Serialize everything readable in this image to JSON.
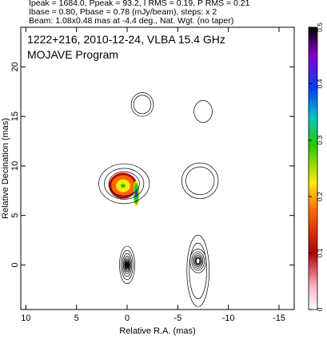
{
  "header": {
    "line1": "Ipeak = 1684.0, Ppeak = 93.2, I RMS = 0.19, P RMS = 0.21",
    "line2": "Ibase = 0.80, Pbase = 0.78 (mJy/beam), steps: x 2",
    "line3": "Beam: 1.08x0.48 mas at -4.4 deg., Nat. Wgt. (no taper)"
  },
  "chart_data": {
    "type": "heatmap",
    "title": "1222+216, 2010-12-24, VLBA 15.4 GHz",
    "subtitle": "MOJAVE Program",
    "xlabel": "Relative R.A. (mas)",
    "ylabel": "Relative Decination (mas)",
    "xlim": [
      10.5,
      -16.5
    ],
    "ylim": [
      -4.5,
      24
    ],
    "x_ticks": [
      10,
      5,
      0,
      -5,
      -10,
      -15
    ],
    "x_tick_labels": [
      "10",
      "5",
      "0",
      "-5",
      "-10",
      "-15"
    ],
    "y_ticks": [
      0,
      5,
      10,
      15,
      20
    ],
    "y_tick_labels": [
      "0",
      "5",
      "10",
      "15",
      "20"
    ],
    "colorbar": {
      "range": [
        0,
        0.5
      ],
      "ticks": [
        0,
        0.1,
        0.2,
        0.3,
        0.4,
        0.5
      ],
      "tick_labels": [
        "0",
        "0.1",
        "0.2",
        "0.3",
        "0.4",
        "0.5"
      ],
      "colors": [
        "#ffffff",
        "#ffb3c6",
        "#b30000",
        "#ff6600",
        "#ffee00",
        "#22cc00",
        "#00c8c8",
        "#0040ff",
        "#8800cc",
        "#000000"
      ]
    },
    "series": [
      {
        "kind": "contours",
        "x": 0,
        "y": 0,
        "rx": 0.75,
        "ry": 1.9,
        "levels": 14
      },
      {
        "kind": "contours",
        "x": -7,
        "y": 0.4,
        "rx": 0.8,
        "ry": 1.2,
        "levels": 7
      },
      {
        "kind": "contours",
        "x": -7,
        "y": -0.6,
        "rx": 1.1,
        "ry": 3.6,
        "levels": 2
      },
      {
        "kind": "contours",
        "x": 0.3,
        "y": 8.2,
        "rx": 2.5,
        "ry": 2.0,
        "levels": 3
      },
      {
        "kind": "contours",
        "x": -7.2,
        "y": 8.5,
        "rx": 1.8,
        "ry": 1.8,
        "levels": 2
      },
      {
        "kind": "contours",
        "x": -1.5,
        "y": 16.2,
        "rx": 1.1,
        "ry": 1.2,
        "levels": 2
      },
      {
        "kind": "contours",
        "x": -7.5,
        "y": 15.5,
        "rx": 0.9,
        "ry": 1.1,
        "levels": 1
      }
    ],
    "polarization_peaks": [
      {
        "x": 0.4,
        "y": 8.0,
        "rx": 1.4,
        "ry": 1.3,
        "value": 0.28
      },
      {
        "x": -0.9,
        "y": 7.2,
        "rx": 0.3,
        "ry": 1.3,
        "value": 0.45
      }
    ]
  }
}
